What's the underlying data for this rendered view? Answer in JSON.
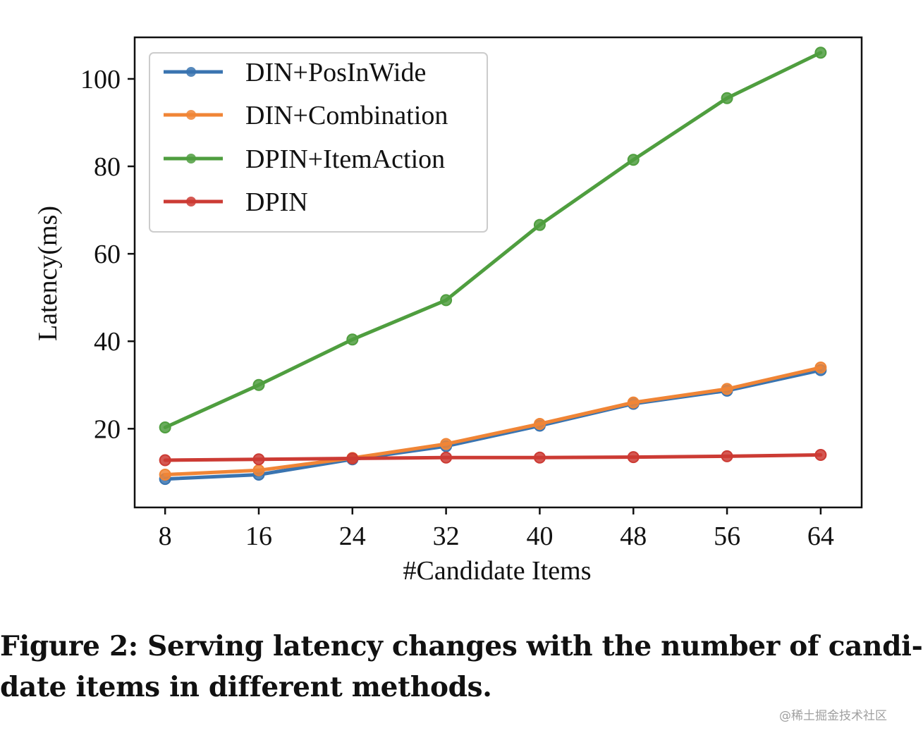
{
  "chart_data": {
    "type": "line",
    "xlabel": "#Candidate Items",
    "ylabel": "Latency(ms)",
    "x": [
      8,
      16,
      24,
      32,
      40,
      48,
      56,
      64
    ],
    "xlim": [
      5.4,
      67.5
    ],
    "ylim": [
      2,
      109.5
    ],
    "yticks": [
      20,
      40,
      60,
      80,
      100
    ],
    "xticks": [
      8,
      16,
      24,
      32,
      40,
      48,
      56,
      64
    ],
    "grid": false,
    "legend_position": "top-left",
    "series": [
      {
        "name": "DIN+PosInWide",
        "color": "#3a74b0",
        "values": [
          8.5,
          9.5,
          13.0,
          16.0,
          20.7,
          25.7,
          28.7,
          33.4
        ]
      },
      {
        "name": "DIN+Combination",
        "color": "#f08536",
        "values": [
          9.5,
          10.5,
          13.3,
          16.5,
          21.1,
          26.0,
          29.1,
          34.0
        ]
      },
      {
        "name": "DPIN+ItemAction",
        "color": "#4f9e3f",
        "values": [
          20.3,
          30.0,
          40.4,
          49.4,
          66.6,
          81.5,
          95.6,
          106.0
        ]
      },
      {
        "name": "DPIN",
        "color": "#cc3b34",
        "values": [
          12.8,
          13.0,
          13.2,
          13.4,
          13.4,
          13.5,
          13.7,
          14.0
        ]
      }
    ]
  },
  "caption": {
    "line1": "Figure 2: Serving latency changes with the number of candi-",
    "line2": "date items in different methods."
  },
  "watermark": "@稀土掘金技术社区"
}
